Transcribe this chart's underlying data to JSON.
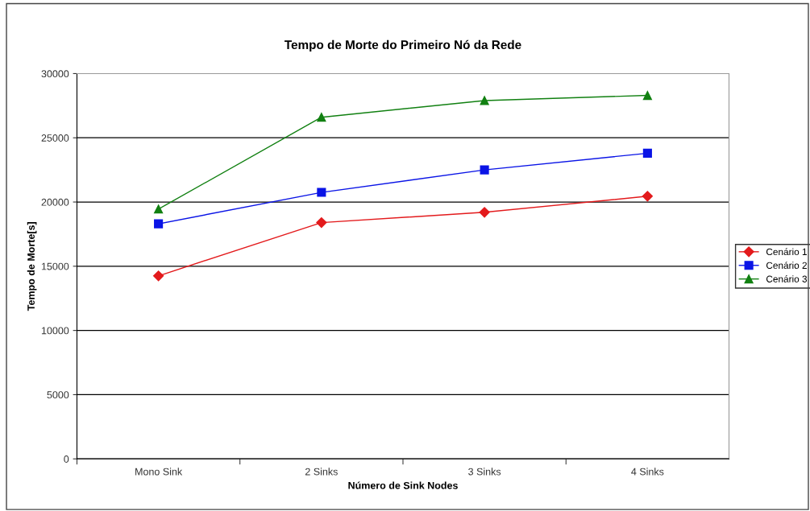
{
  "chart_data": {
    "type": "line",
    "title": "Tempo de Morte do Primeiro Nó da Rede",
    "xlabel": "Número de Sink Nodes",
    "ylabel": "Tempo de Morte[s]",
    "categories": [
      "Mono Sink",
      "2 Sinks",
      "3 Sinks",
      "4 Sinks"
    ],
    "series": [
      {
        "name": "Cenário 1",
        "color": "#e31a1c",
        "values": [
          14250,
          18400,
          19200,
          20450
        ],
        "marker": "diamond"
      },
      {
        "name": "Cenário 2",
        "color": "#0a14e6",
        "values": [
          18300,
          20750,
          22500,
          23800
        ],
        "marker": "square"
      },
      {
        "name": "Cenário 3",
        "color": "#118011",
        "values": [
          19450,
          26600,
          27900,
          28300
        ],
        "marker": "triangle"
      }
    ],
    "ylim": [
      0,
      30000
    ],
    "yticks": [
      0,
      5000,
      10000,
      15000,
      20000,
      25000,
      30000
    ],
    "grid": "y",
    "legend": "right",
    "line_style": "solid"
  }
}
